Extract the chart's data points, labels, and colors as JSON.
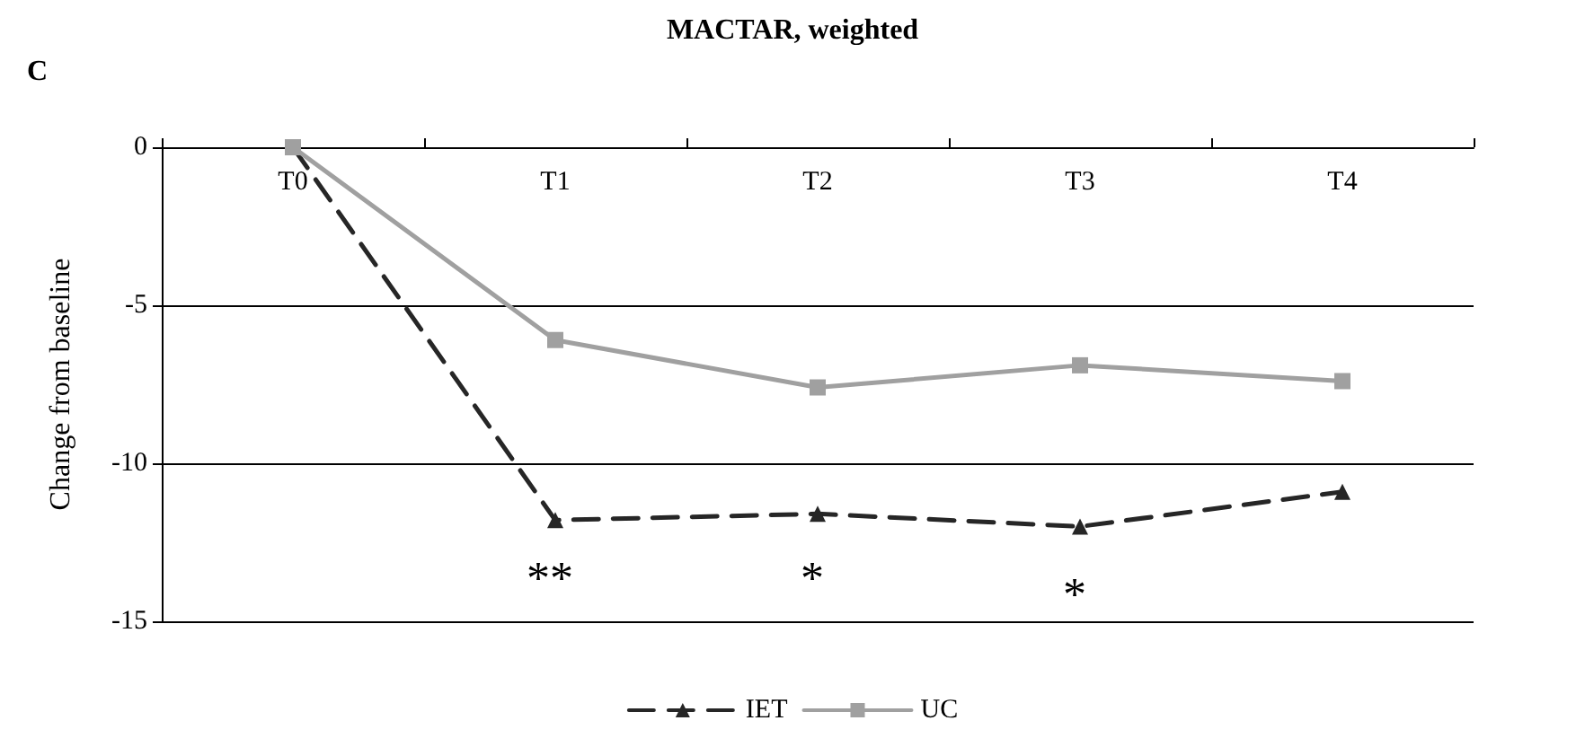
{
  "chart_data": {
    "type": "line",
    "title": "MACTAR, weighted",
    "ylabel": "Change from baseline",
    "categories": [
      "T0",
      "T1",
      "T2",
      "T3",
      "T4"
    ],
    "series": [
      {
        "name": "IET",
        "color": "#262626",
        "marker": "triangle",
        "line_style": "dashed",
        "values": [
          0,
          -11.8,
          -11.6,
          -12.0,
          -10.9
        ]
      },
      {
        "name": "UC",
        "color": "#a0a0a0",
        "marker": "square",
        "line_style": "solid",
        "values": [
          0,
          -6.1,
          -7.6,
          -6.9,
          -7.4
        ]
      }
    ],
    "ylim": [
      -15,
      0
    ],
    "yticks": [
      -15,
      -10,
      -5,
      0
    ],
    "grid": "y",
    "legend": "bottom",
    "annotations": [
      "C",
      "**",
      "*",
      "*"
    ]
  }
}
